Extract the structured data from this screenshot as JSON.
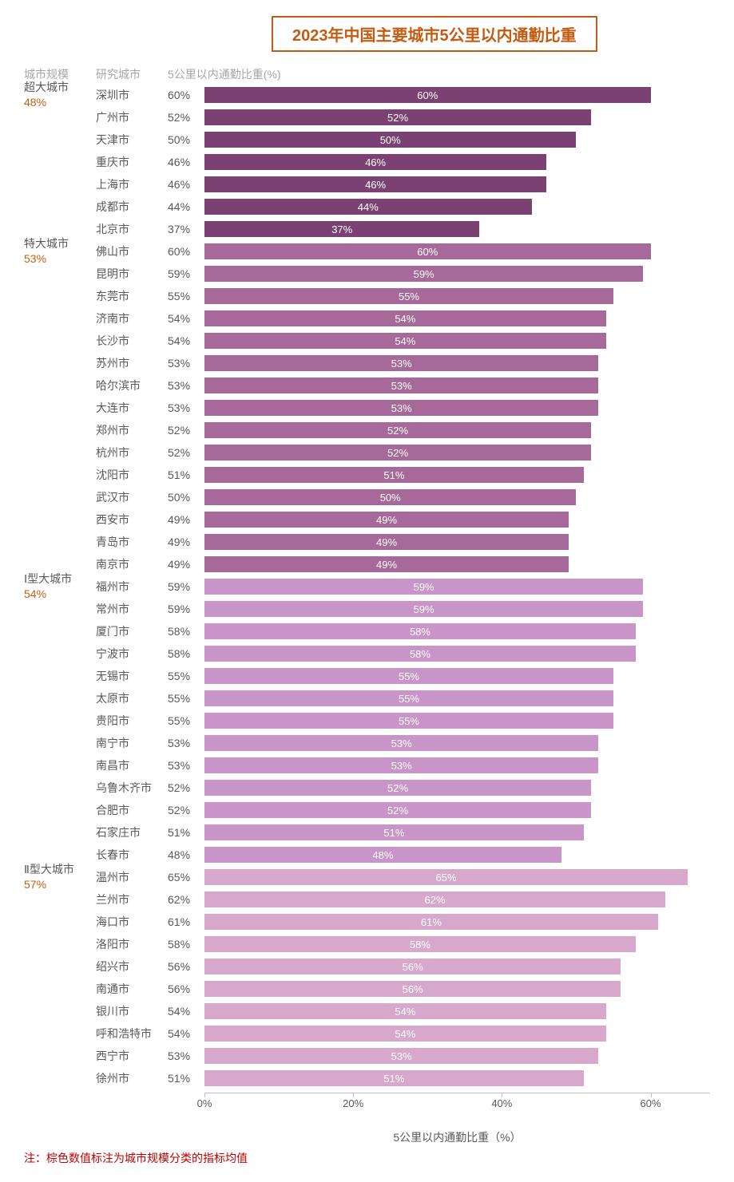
{
  "title": "2023年中国主要城市5公里以内通勤比重",
  "header": {
    "scale": "城市规模",
    "city": "研究城市",
    "pct": "5公里以内通勤比重(%)"
  },
  "axis": {
    "title": "5公里以内通勤比重（%）",
    "xmax": 68,
    "ticks": [
      {
        "value": 0,
        "label": "0%"
      },
      {
        "value": 20,
        "label": "20%"
      },
      {
        "value": 40,
        "label": "40%"
      },
      {
        "value": 60,
        "label": "60%"
      }
    ]
  },
  "footnote": "注：棕色数值标注为城市规模分类的指标均值",
  "colors": {
    "title_border": "#c55a11",
    "title_text": "#c55a11",
    "header_text": "#a6a6a6",
    "body_text": "#595959",
    "avg_text": "#c55a11",
    "footnote_text": "#c00000"
  },
  "groups": [
    {
      "name": "超大城市",
      "avg": "48%",
      "bar_color": "#7b4173",
      "cities": [
        {
          "city": "深圳市",
          "value": 60
        },
        {
          "city": "广州市",
          "value": 52
        },
        {
          "city": "天津市",
          "value": 50
        },
        {
          "city": "重庆市",
          "value": 46
        },
        {
          "city": "上海市",
          "value": 46
        },
        {
          "city": "成都市",
          "value": 44
        },
        {
          "city": "北京市",
          "value": 37
        }
      ]
    },
    {
      "name": "特大城市",
      "avg": "53%",
      "bar_color": "#a66999",
      "cities": [
        {
          "city": "佛山市",
          "value": 60
        },
        {
          "city": "昆明市",
          "value": 59
        },
        {
          "city": "东莞市",
          "value": 55
        },
        {
          "city": "济南市",
          "value": 54
        },
        {
          "city": "长沙市",
          "value": 54
        },
        {
          "city": "苏州市",
          "value": 53
        },
        {
          "city": "哈尔滨市",
          "value": 53
        },
        {
          "city": "大连市",
          "value": 53
        },
        {
          "city": "郑州市",
          "value": 52
        },
        {
          "city": "杭州市",
          "value": 52
        },
        {
          "city": "沈阳市",
          "value": 51
        },
        {
          "city": "武汉市",
          "value": 50
        },
        {
          "city": "西安市",
          "value": 49
        },
        {
          "city": "青岛市",
          "value": 49
        },
        {
          "city": "南京市",
          "value": 49
        }
      ]
    },
    {
      "name": "Ⅰ型大城市",
      "avg": "54%",
      "bar_color": "#c994c7",
      "cities": [
        {
          "city": "福州市",
          "value": 59
        },
        {
          "city": "常州市",
          "value": 59
        },
        {
          "city": "厦门市",
          "value": 58
        },
        {
          "city": "宁波市",
          "value": 58
        },
        {
          "city": "无锡市",
          "value": 55
        },
        {
          "city": "太原市",
          "value": 55
        },
        {
          "city": "贵阳市",
          "value": 55
        },
        {
          "city": "南宁市",
          "value": 53
        },
        {
          "city": "南昌市",
          "value": 53
        },
        {
          "city": "乌鲁木齐市",
          "value": 52
        },
        {
          "city": "合肥市",
          "value": 52
        },
        {
          "city": "石家庄市",
          "value": 51
        },
        {
          "city": "长春市",
          "value": 48
        }
      ]
    },
    {
      "name": "Ⅱ型大城市",
      "avg": "57%",
      "bar_color": "#d8a8cc",
      "cities": [
        {
          "city": "温州市",
          "value": 65
        },
        {
          "city": "兰州市",
          "value": 62
        },
        {
          "city": "海口市",
          "value": 61
        },
        {
          "city": "洛阳市",
          "value": 58
        },
        {
          "city": "绍兴市",
          "value": 56
        },
        {
          "city": "南通市",
          "value": 56
        },
        {
          "city": "银川市",
          "value": 54
        },
        {
          "city": "呼和浩特市",
          "value": 54
        },
        {
          "city": "西宁市",
          "value": 53
        },
        {
          "city": "徐州市",
          "value": 51
        }
      ]
    }
  ]
}
